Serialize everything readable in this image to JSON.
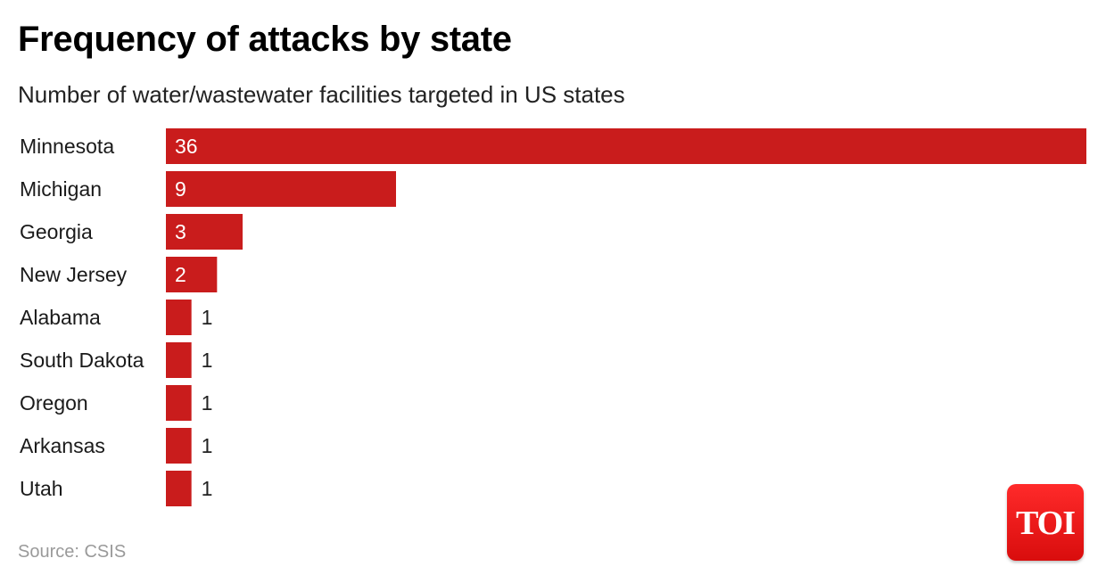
{
  "title": "Frequency of attacks by state",
  "subtitle": "Number of water/wastewater facilities targeted in US states",
  "source": "Source: CSIS",
  "logo": "TOI",
  "colors": {
    "bar": "#c91c1c",
    "label_inside": "#ffffff",
    "label_outside": "#222222"
  },
  "chart_data": {
    "type": "bar",
    "orientation": "horizontal",
    "categories": [
      "Minnesota",
      "Michigan",
      "Georgia",
      "New Jersey",
      "Alabama",
      "South Dakota",
      "Oregon",
      "Arkansas",
      "Utah"
    ],
    "values": [
      36,
      9,
      3,
      2,
      1,
      1,
      1,
      1,
      1
    ],
    "data_labels": true,
    "xlim": [
      0,
      36
    ],
    "grid": false,
    "legend": "none"
  }
}
